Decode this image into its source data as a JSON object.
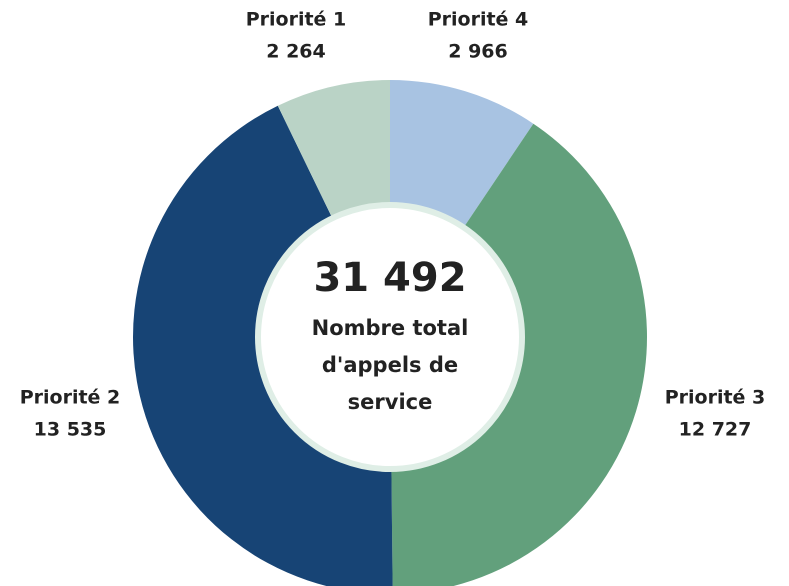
{
  "chart_data": {
    "type": "donut",
    "categories": [
      "Priorité 4",
      "Priorité 3",
      "Priorité 2",
      "Priorité 1"
    ],
    "values": [
      2966,
      12727,
      13535,
      2264
    ],
    "value_labels": [
      "2 966",
      "12 727",
      "13 535",
      "2 264"
    ],
    "colors": [
      "#a8c3e2",
      "#62a07c",
      "#174475",
      "#bad3c6"
    ],
    "total": 31492,
    "total_label": "31 492",
    "center_text": [
      "Nombre total",
      "d'appels de",
      "service"
    ]
  }
}
